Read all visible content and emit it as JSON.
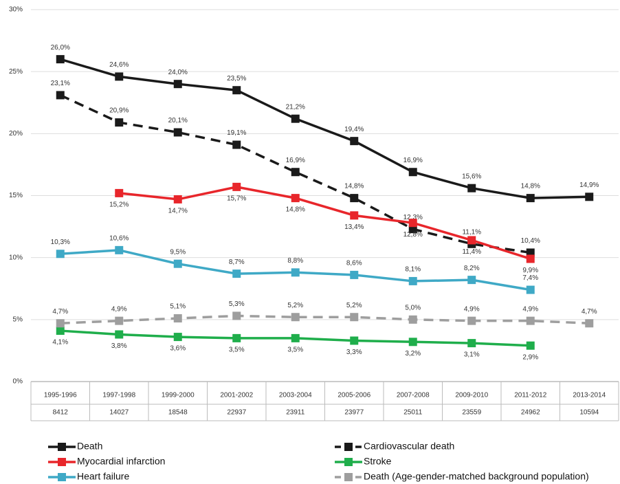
{
  "chart_data": {
    "type": "line",
    "categories": [
      "1995-1996",
      "1997-1998",
      "1999-2000",
      "2001-2002",
      "2003-2004",
      "2005-2006",
      "2007-2008",
      "2009-2010",
      "2011-2012",
      "2013-2014"
    ],
    "category_counts": [
      8412,
      14027,
      18548,
      22937,
      23911,
      23977,
      25011,
      23559,
      24962,
      10594
    ],
    "ylim": [
      0,
      30
    ],
    "yticks": [
      {
        "value": 0,
        "label": "0%"
      },
      {
        "value": 5,
        "label": "5%"
      },
      {
        "value": 10,
        "label": "10%"
      },
      {
        "value": 15,
        "label": "15%"
      },
      {
        "value": 20,
        "label": "20%"
      },
      {
        "value": 25,
        "label": "25%"
      },
      {
        "value": 30,
        "label": "30%"
      }
    ],
    "grid": true,
    "series": [
      {
        "name": "Death",
        "color": "#1a1a1a",
        "dashed": false,
        "label_side": "above",
        "values": [
          26.0,
          24.6,
          24.0,
          23.5,
          21.2,
          19.4,
          16.9,
          15.6,
          14.8,
          14.9
        ],
        "value_labels": [
          "26,0%",
          "24,6%",
          "24,0%",
          "23,5%",
          "21,2%",
          "19,4%",
          "16,9%",
          "15,6%",
          "14,8%",
          "14,9%"
        ]
      },
      {
        "name": "Cardiovascular death",
        "color": "#1a1a1a",
        "dashed": true,
        "label_side": "above",
        "values": [
          23.1,
          20.9,
          20.1,
          19.1,
          16.9,
          14.8,
          12.3,
          11.1,
          10.4,
          null
        ],
        "value_labels": [
          "23,1%",
          "20,9%",
          "20,1%",
          "19,1%",
          "16,9%",
          "14,8%",
          "12,3%",
          "11,1%",
          "10,4%",
          null
        ]
      },
      {
        "name": "Myocardial infarction",
        "color": "#e8262b",
        "dashed": false,
        "label_side": "below",
        "values": [
          null,
          15.2,
          14.7,
          15.7,
          14.8,
          13.4,
          12.8,
          11.4,
          9.9,
          null
        ],
        "value_labels": [
          null,
          "15,2%",
          "14,7%",
          "15,7%",
          "14,8%",
          "13,4%",
          "12,8%",
          "11,4%",
          "9,9%",
          null
        ]
      },
      {
        "name": "Stroke",
        "color": "#1fae4b",
        "dashed": false,
        "label_side": "below",
        "values": [
          4.1,
          3.8,
          3.6,
          3.5,
          3.5,
          3.3,
          3.2,
          3.1,
          2.9,
          null
        ],
        "value_labels": [
          "4,1%",
          "3,8%",
          "3,6%",
          "3,5%",
          "3,5%",
          "3,3%",
          "3,2%",
          "3,1%",
          "2,9%",
          null
        ]
      },
      {
        "name": "Heart failure",
        "color": "#3fa9c6",
        "dashed": false,
        "label_side": "above",
        "values": [
          10.3,
          10.6,
          9.5,
          8.7,
          8.8,
          8.6,
          8.1,
          8.2,
          7.4,
          null
        ],
        "value_labels": [
          "10,3%",
          "10,6%",
          "9,5%",
          "8,7%",
          "8,8%",
          "8,6%",
          "8,1%",
          "8,2%",
          "7,4%",
          null
        ]
      },
      {
        "name": "Death (Age-gender-matched background population)",
        "color": "#9e9e9e",
        "dashed": true,
        "label_side": "above",
        "values": [
          4.7,
          4.9,
          5.1,
          5.3,
          5.2,
          5.2,
          5.0,
          4.9,
          4.9,
          4.7
        ],
        "value_labels": [
          "4,7%",
          "4,9%",
          "5,1%",
          "5,3%",
          "5,2%",
          "5,2%",
          "5,0%",
          "4,9%",
          "4,9%",
          "4,7%"
        ]
      }
    ]
  }
}
